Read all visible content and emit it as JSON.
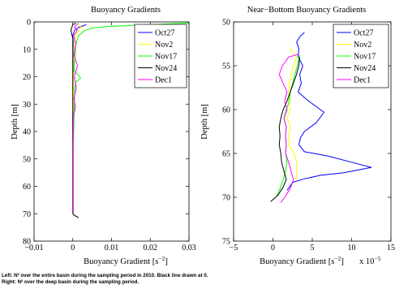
{
  "caption": {
    "line1": "Left: N² over the entire basin during the sampling period in 2010. Black line drawn at 0.",
    "line2": "Right: N² over the deep basin during the sampling period."
  },
  "chart_data": [
    {
      "type": "line",
      "title": "Buoyancy Gradients",
      "xlabel": "Buoyancy Gradient [s",
      "xlabel_exp": "−2",
      "xlabel_end": "]",
      "ylabel": "Depth [m]",
      "xlim": [
        -0.01,
        0.03
      ],
      "ylim": [
        0,
        80
      ],
      "y_reversed": true,
      "xticks": [
        -0.01,
        0,
        0.01,
        0.02,
        0.03
      ],
      "xtick_labels": [
        "−0.01",
        "0",
        "0.01",
        "0.02",
        "0.03"
      ],
      "yticks": [
        0,
        10,
        20,
        30,
        40,
        50,
        60,
        70,
        80
      ],
      "ytick_labels": [
        "0",
        "10",
        "20",
        "30",
        "40",
        "50",
        "60",
        "70",
        "80"
      ],
      "legend": {
        "position": "top-right"
      },
      "series": [
        {
          "name": "Oct27",
          "color": "#0000ff",
          "points": [
            [
              0.0035,
              1
            ],
            [
              0.0015,
              2
            ],
            [
              0.0005,
              3
            ],
            [
              0.0,
              5
            ],
            [
              0.0002,
              10
            ],
            [
              0.0001,
              20
            ],
            [
              0.0001,
              30
            ],
            [
              0.0001,
              40
            ],
            [
              0.0001,
              50
            ],
            [
              0.0001,
              60
            ],
            [
              0.0001,
              70
            ]
          ]
        },
        {
          "name": "Nov2",
          "color": "#ffff00",
          "points": [
            [
              0.0015,
              1
            ],
            [
              0.0022,
              2
            ],
            [
              0.001,
              4
            ],
            [
              0.0003,
              8
            ],
            [
              0.0002,
              20
            ],
            [
              0.0001,
              35
            ],
            [
              0.0001,
              50
            ],
            [
              0.0001,
              70
            ]
          ]
        },
        {
          "name": "Nov17",
          "color": "#00ff00",
          "points": [
            [
              0.03,
              0.4
            ],
            [
              0.02,
              1
            ],
            [
              0.01,
              1.6
            ],
            [
              0.005,
              2.2
            ],
            [
              0.003,
              3.2
            ],
            [
              0.0015,
              5
            ],
            [
              0.0008,
              8
            ],
            [
              0.0005,
              14
            ],
            [
              0.0003,
              18
            ],
            [
              0.0012,
              19
            ],
            [
              0.002,
              20.5
            ],
            [
              0.0008,
              22
            ],
            [
              0.0005,
              24
            ],
            [
              0.0004,
              30
            ],
            [
              0.0002,
              40
            ],
            [
              0.0001,
              50
            ],
            [
              0.0001,
              70
            ]
          ]
        },
        {
          "name": "Nov24",
          "color": "#000000",
          "points": [
            [
              0.0008,
              0.5
            ],
            [
              0.0,
              1
            ],
            [
              -0.0005,
              3
            ],
            [
              0.0,
              6
            ],
            [
              0.0,
              20
            ],
            [
              0.0,
              40
            ],
            [
              0.0,
              60
            ],
            [
              0.0,
              70
            ],
            [
              0.0005,
              70.7
            ],
            [
              0.001,
              71
            ],
            [
              0.0015,
              71.5
            ]
          ]
        },
        {
          "name": "Dec1",
          "color": "#ff00ff",
          "points": [
            [
              0.0014,
              0.5
            ],
            [
              0.0004,
              2
            ],
            [
              0.0012,
              3
            ],
            [
              0.0002,
              5
            ],
            [
              0.0008,
              8
            ],
            [
              0.0003,
              12
            ],
            [
              0.0012,
              16
            ],
            [
              0.0004,
              20
            ],
            [
              0.0009,
              24
            ],
            [
              0.0003,
              28
            ],
            [
              0.0007,
              31
            ],
            [
              0.0002,
              34
            ],
            [
              0.0001,
              45
            ],
            [
              0.0001,
              60
            ],
            [
              0.0001,
              70
            ]
          ]
        }
      ]
    },
    {
      "type": "line",
      "title": "Near−Bottom Buoyancy Gradients",
      "xlabel": "Buoyancy Gradient [s",
      "xlabel_exp": "−2",
      "xlabel_end": "]",
      "x_multiplier": "x 10",
      "x_multiplier_exp": "−5",
      "ylabel": "Depth [m]",
      "xlim": [
        -5,
        15
      ],
      "ylim": [
        50,
        75
      ],
      "y_reversed": true,
      "xticks": [
        -5,
        0,
        5,
        10,
        15
      ],
      "xtick_labels": [
        "−5",
        "0",
        "5",
        "10",
        "15"
      ],
      "yticks": [
        50,
        55,
        60,
        65,
        70,
        75
      ],
      "ytick_labels": [
        "50",
        "55",
        "60",
        "65",
        "70",
        "75"
      ],
      "legend": {
        "position": "top-right"
      },
      "series": [
        {
          "name": "Oct27",
          "color": "#0000ff",
          "points": [
            [
              4,
              51.2
            ],
            [
              3.5,
              51.6
            ],
            [
              3,
              52.3
            ],
            [
              3.3,
              53
            ],
            [
              3.2,
              54
            ],
            [
              3.8,
              55
            ],
            [
              3.4,
              56
            ],
            [
              3.6,
              57
            ],
            [
              3.2,
              58
            ],
            [
              4.5,
              59
            ],
            [
              6.5,
              60.3
            ],
            [
              5.5,
              61.5
            ],
            [
              4,
              62.5
            ],
            [
              3.5,
              63.2
            ],
            [
              3.3,
              64
            ],
            [
              4,
              64.8
            ],
            [
              7,
              65.3
            ],
            [
              10,
              66
            ],
            [
              12.5,
              66.6
            ],
            [
              9,
              67.2
            ],
            [
              6,
              67.5
            ],
            [
              4,
              67.9
            ],
            [
              2.5,
              68.3
            ],
            [
              2.2,
              68.7
            ],
            [
              1.8,
              69.2
            ]
          ]
        },
        {
          "name": "Nov2",
          "color": "#ffff00",
          "points": [
            [
              2.2,
              53
            ],
            [
              3,
              54
            ],
            [
              2.6,
              55
            ],
            [
              2.3,
              56
            ],
            [
              2.1,
              57
            ],
            [
              2,
              58
            ],
            [
              2,
              59
            ],
            [
              2.2,
              60
            ],
            [
              1.8,
              61
            ],
            [
              2.2,
              62
            ],
            [
              2,
              63
            ],
            [
              2,
              64
            ],
            [
              2.7,
              65
            ],
            [
              3,
              66
            ],
            [
              3,
              67
            ],
            [
              3,
              68
            ]
          ]
        },
        {
          "name": "Nov17",
          "color": "#00ff00",
          "points": [
            [
              3.4,
              53.8
            ],
            [
              3.1,
              55
            ],
            [
              2.8,
              56
            ],
            [
              2.5,
              57
            ],
            [
              2.2,
              58
            ],
            [
              2.1,
              59
            ],
            [
              1.7,
              60
            ],
            [
              1.4,
              61
            ],
            [
              1.7,
              62
            ],
            [
              1.6,
              63
            ],
            [
              1.7,
              64
            ],
            [
              1.6,
              65
            ],
            [
              1.8,
              66
            ],
            [
              1.6,
              67
            ],
            [
              1.3,
              68
            ],
            [
              0.9,
              69
            ],
            [
              0.5,
              69.8
            ]
          ]
        },
        {
          "name": "Nov24",
          "color": "#000000",
          "points": [
            [
              3.4,
              54
            ],
            [
              3.3,
              55
            ],
            [
              3,
              56
            ],
            [
              2.6,
              57
            ],
            [
              2.2,
              58
            ],
            [
              1.8,
              59
            ],
            [
              1.3,
              60
            ],
            [
              1,
              61
            ],
            [
              0.8,
              62
            ],
            [
              0.9,
              63
            ],
            [
              0.8,
              64
            ],
            [
              1,
              65
            ],
            [
              1.1,
              66
            ],
            [
              1.4,
              67
            ],
            [
              1.7,
              68
            ],
            [
              1.2,
              69
            ],
            [
              0.6,
              69.8
            ],
            [
              -0.3,
              70.5
            ]
          ]
        },
        {
          "name": "Dec1",
          "color": "#ff00ff",
          "points": [
            [
              3.2,
              53.7
            ],
            [
              2,
              54
            ],
            [
              1.2,
              55
            ],
            [
              0.8,
              56
            ],
            [
              1.3,
              57
            ],
            [
              1.8,
              58
            ],
            [
              1.5,
              59
            ],
            [
              1.8,
              60
            ],
            [
              1.4,
              61
            ],
            [
              1.7,
              62
            ],
            [
              1.6,
              63
            ],
            [
              1.7,
              64
            ],
            [
              1.6,
              65
            ],
            [
              2,
              66
            ],
            [
              2.3,
              67
            ],
            [
              2.6,
              68
            ],
            [
              2.2,
              69
            ],
            [
              1.5,
              70
            ],
            [
              1,
              70.6
            ]
          ]
        }
      ]
    }
  ]
}
